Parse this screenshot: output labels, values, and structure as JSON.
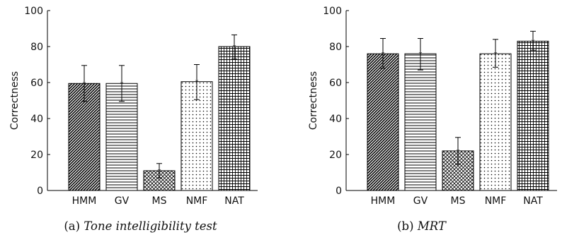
{
  "chart_data": [
    {
      "type": "bar",
      "caption_label": "(a)",
      "caption_title": "Tone intelligibility test",
      "ylabel": "Correctness",
      "ylim": [
        0,
        100
      ],
      "yticks": [
        0,
        20,
        40,
        60,
        80,
        100
      ],
      "categories": [
        "HMM",
        "GV",
        "MS",
        "NMF",
        "NAT"
      ],
      "values": [
        59.5,
        59.5,
        11,
        60.5,
        80
      ],
      "error_low": [
        49.5,
        49.5,
        7,
        50.5,
        73
      ],
      "error_high": [
        69.5,
        69.5,
        15,
        70,
        86.5
      ],
      "patterns": [
        "diag-dense",
        "hlines",
        "crosshatch",
        "dots",
        "grid"
      ]
    },
    {
      "type": "bar",
      "caption_label": "(b)",
      "caption_title": "MRT",
      "ylabel": "Correctness",
      "ylim": [
        0,
        100
      ],
      "yticks": [
        0,
        20,
        40,
        60,
        80,
        100
      ],
      "categories": [
        "HMM",
        "GV",
        "MS",
        "NMF",
        "NAT"
      ],
      "values": [
        76,
        76,
        22,
        76,
        83
      ],
      "error_low": [
        68,
        67,
        14.5,
        68.5,
        78
      ],
      "error_high": [
        84.5,
        84.5,
        29.5,
        84,
        88.5
      ],
      "patterns": [
        "diag-dense",
        "hlines",
        "crosshatch",
        "dots",
        "grid"
      ]
    }
  ]
}
